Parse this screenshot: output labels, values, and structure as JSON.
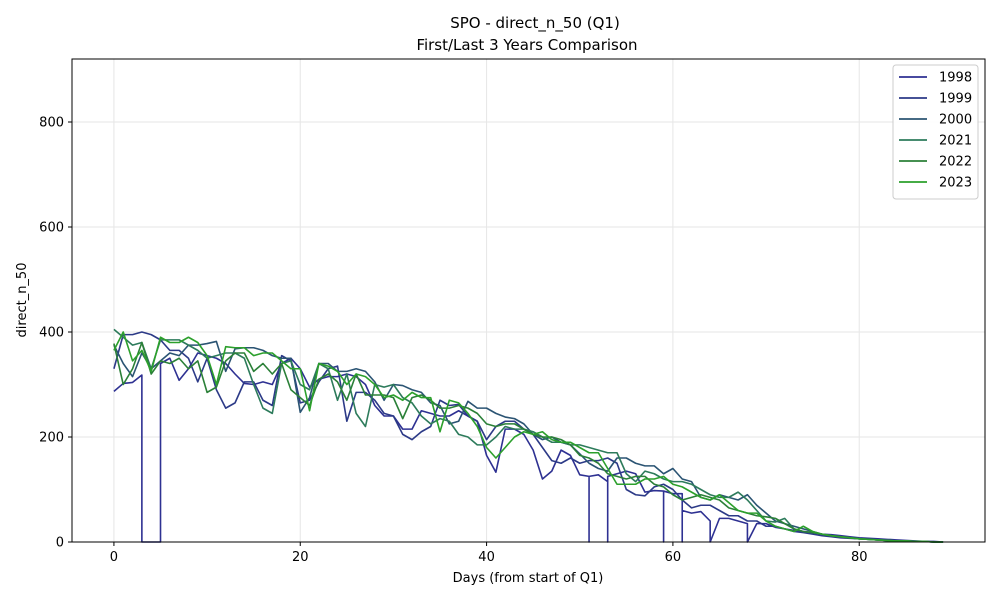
{
  "chart_data": {
    "type": "line",
    "title": "SPO - direct_n_50 (Q1)",
    "subtitle": "First/Last 3 Years Comparison",
    "xlabel": "Days (from start of Q1)",
    "ylabel": "direct_n_50",
    "xlim": [
      -4.5,
      93.5
    ],
    "ylim": [
      0,
      920
    ],
    "xticks": [
      0,
      20,
      40,
      60,
      80
    ],
    "yticks": [
      0,
      200,
      400,
      600,
      800
    ],
    "grid": true,
    "legend_position": "top-right",
    "series": [
      {
        "name": "1998",
        "color": "#2e3192",
        "x": [
          0,
          1,
          2,
          3,
          3,
          3,
          4,
          5,
          5,
          5,
          6,
          7,
          8,
          9,
          10,
          11,
          12,
          13,
          14,
          15,
          16,
          17,
          18,
          19,
          20,
          21,
          22,
          23,
          24,
          25,
          26,
          27,
          28,
          29,
          30,
          31,
          32,
          33,
          34,
          35,
          36,
          37,
          38,
          39,
          40,
          41,
          42,
          43,
          44,
          45,
          46,
          47,
          48,
          49,
          50,
          51,
          51,
          51,
          52,
          53,
          53,
          53,
          54,
          55,
          56,
          57,
          58,
          59,
          59,
          59,
          60,
          61,
          61,
          61,
          62,
          63,
          64,
          64,
          64,
          65,
          66,
          67,
          68,
          68,
          68,
          69,
          70,
          71,
          72,
          73,
          74,
          75,
          76,
          77,
          78,
          79,
          80,
          81,
          82,
          83,
          84,
          85,
          86,
          87,
          88,
          89
        ],
        "y": [
          287,
          302,
          304,
          318,
          0,
          0,
          0,
          0,
          297,
          340,
          350,
          308,
          330,
          360,
          355,
          350,
          340,
          320,
          302,
          300,
          305,
          300,
          340,
          350,
          330,
          295,
          310,
          315,
          315,
          320,
          315,
          300,
          260,
          240,
          240,
          215,
          215,
          250,
          245,
          240,
          240,
          250,
          240,
          230,
          165,
          133,
          215,
          215,
          205,
          175,
          120,
          135,
          175,
          165,
          128,
          125,
          0,
          125,
          128,
          115,
          0,
          125,
          130,
          135,
          130,
          95,
          98,
          97,
          0,
          97,
          92,
          92,
          0,
          60,
          55,
          58,
          40,
          0,
          0,
          45,
          45,
          40,
          35,
          0,
          0,
          35,
          35,
          28,
          25,
          22,
          20,
          18,
          15,
          14,
          12,
          10,
          8,
          7,
          6,
          5,
          4,
          3,
          2,
          1,
          1,
          0
        ]
      },
      {
        "name": "1999",
        "color": "#2c3a87",
        "x": [
          0,
          1,
          2,
          3,
          4,
          5,
          6,
          7,
          8,
          9,
          10,
          11,
          12,
          13,
          14,
          15,
          16,
          17,
          18,
          19,
          20,
          21,
          22,
          23,
          24,
          25,
          26,
          27,
          28,
          29,
          30,
          31,
          32,
          33,
          34,
          35,
          36,
          37,
          38,
          39,
          40,
          41,
          42,
          43,
          44,
          45,
          46,
          47,
          48,
          49,
          50,
          51,
          52,
          53,
          54,
          55,
          56,
          57,
          58,
          59,
          60,
          61,
          62,
          63,
          64,
          65,
          66,
          67,
          68,
          69,
          70,
          71,
          72,
          73,
          74,
          75,
          76,
          77,
          78,
          79,
          80,
          81,
          82,
          83,
          84,
          85,
          86,
          87,
          88,
          89
        ],
        "y": [
          330,
          395,
          395,
          400,
          395,
          385,
          365,
          365,
          350,
          305,
          350,
          290,
          255,
          265,
          305,
          305,
          270,
          260,
          355,
          345,
          265,
          270,
          305,
          330,
          335,
          230,
          285,
          285,
          270,
          245,
          240,
          205,
          195,
          210,
          220,
          270,
          260,
          262,
          240,
          230,
          195,
          220,
          230,
          230,
          215,
          205,
          180,
          155,
          150,
          160,
          150,
          155,
          155,
          160,
          150,
          100,
          90,
          88,
          105,
          110,
          100,
          80,
          65,
          70,
          70,
          60,
          50,
          50,
          40,
          40,
          30,
          30,
          25,
          20,
          18,
          15,
          12,
          10,
          8,
          7,
          6,
          5,
          4,
          3,
          2,
          2,
          1,
          1,
          0,
          0
        ]
      },
      {
        "name": "2000",
        "color": "#2b5473",
        "x": [
          0,
          1,
          2,
          3,
          4,
          5,
          6,
          7,
          8,
          9,
          10,
          11,
          12,
          13,
          14,
          15,
          16,
          17,
          18,
          19,
          20,
          21,
          22,
          23,
          24,
          25,
          26,
          27,
          28,
          29,
          30,
          31,
          32,
          33,
          34,
          35,
          36,
          37,
          38,
          39,
          40,
          41,
          42,
          43,
          44,
          45,
          46,
          47,
          48,
          49,
          50,
          51,
          52,
          53,
          54,
          55,
          56,
          57,
          58,
          59,
          60,
          61,
          62,
          63,
          64,
          65,
          66,
          67,
          68,
          69,
          70,
          71,
          72,
          73,
          74,
          75,
          76,
          77,
          78,
          79,
          80,
          81,
          82,
          83,
          84,
          85,
          86,
          87,
          88,
          89
        ],
        "y": [
          375,
          340,
          315,
          360,
          330,
          345,
          360,
          355,
          375,
          375,
          378,
          382,
          325,
          368,
          370,
          370,
          365,
          355,
          350,
          350,
          247,
          275,
          340,
          340,
          325,
          325,
          330,
          325,
          305,
          270,
          300,
          298,
          290,
          285,
          265,
          260,
          225,
          230,
          268,
          255,
          255,
          245,
          238,
          235,
          225,
          205,
          195,
          200,
          190,
          185,
          168,
          150,
          140,
          135,
          160,
          160,
          150,
          145,
          145,
          130,
          140,
          120,
          115,
          85,
          80,
          90,
          85,
          80,
          90,
          70,
          55,
          40,
          35,
          30,
          25,
          20,
          15,
          12,
          10,
          8,
          6,
          5,
          4,
          3,
          2,
          2,
          1,
          1,
          0,
          0
        ]
      },
      {
        "name": "2021",
        "color": "#2d7b5b",
        "x": [
          0,
          1,
          2,
          3,
          4,
          5,
          6,
          7,
          8,
          9,
          10,
          11,
          12,
          13,
          14,
          15,
          16,
          17,
          18,
          19,
          20,
          21,
          22,
          23,
          24,
          25,
          26,
          27,
          28,
          29,
          30,
          31,
          32,
          33,
          34,
          35,
          36,
          37,
          38,
          39,
          40,
          41,
          42,
          43,
          44,
          45,
          46,
          47,
          48,
          49,
          50,
          51,
          52,
          53,
          54,
          55,
          56,
          57,
          58,
          59,
          60,
          61,
          62,
          63,
          64,
          65,
          66,
          67,
          68,
          69,
          70,
          71,
          72,
          73,
          74,
          75,
          76,
          77,
          78,
          79,
          80,
          81,
          82,
          83,
          84,
          85,
          86,
          87,
          88,
          89
        ],
        "y": [
          405,
          390,
          375,
          380,
          330,
          385,
          385,
          385,
          375,
          365,
          350,
          355,
          360,
          360,
          350,
          300,
          255,
          245,
          340,
          345,
          300,
          290,
          340,
          330,
          270,
          320,
          245,
          220,
          300,
          295,
          300,
          275,
          265,
          240,
          225,
          235,
          230,
          205,
          200,
          185,
          185,
          200,
          220,
          215,
          215,
          210,
          200,
          190,
          190,
          185,
          185,
          180,
          175,
          170,
          170,
          130,
          115,
          135,
          130,
          120,
          115,
          115,
          110,
          100,
          90,
          85,
          85,
          95,
          80,
          60,
          40,
          38,
          45,
          25,
          20,
          18,
          15,
          12,
          10,
          8,
          6,
          5,
          4,
          3,
          2,
          2,
          1,
          1,
          0,
          0
        ]
      },
      {
        "name": "2022",
        "color": "#2b8038",
        "x": [
          0,
          1,
          2,
          3,
          4,
          5,
          6,
          7,
          8,
          9,
          10,
          11,
          12,
          13,
          14,
          15,
          16,
          17,
          18,
          19,
          20,
          21,
          22,
          23,
          24,
          25,
          26,
          27,
          28,
          29,
          30,
          31,
          32,
          33,
          34,
          35,
          36,
          37,
          38,
          39,
          40,
          41,
          42,
          43,
          44,
          45,
          46,
          47,
          48,
          49,
          50,
          51,
          52,
          53,
          54,
          55,
          56,
          57,
          58,
          59,
          60,
          61,
          62,
          63,
          64,
          65,
          66,
          67,
          68,
          69,
          70,
          71,
          72,
          73,
          74,
          75,
          76,
          77,
          78,
          79,
          80,
          81,
          82,
          83,
          84,
          85,
          86,
          87,
          88,
          89
        ],
        "y": [
          378,
          300,
          330,
          380,
          320,
          345,
          340,
          350,
          330,
          345,
          285,
          295,
          345,
          360,
          360,
          325,
          340,
          320,
          340,
          290,
          275,
          260,
          310,
          320,
          305,
          270,
          320,
          280,
          280,
          280,
          275,
          235,
          275,
          280,
          270,
          255,
          255,
          260,
          255,
          245,
          225,
          220,
          225,
          225,
          215,
          205,
          200,
          200,
          195,
          185,
          165,
          160,
          150,
          130,
          125,
          120,
          125,
          125,
          110,
          105,
          90,
          80,
          85,
          90,
          85,
          80,
          65,
          60,
          55,
          50,
          48,
          45,
          35,
          25,
          20,
          18,
          15,
          12,
          10,
          8,
          6,
          5,
          4,
          3,
          2,
          2,
          1,
          1,
          0,
          0
        ]
      },
      {
        "name": "2023",
        "color": "#2ca02c",
        "x": [
          0,
          1,
          2,
          3,
          4,
          5,
          6,
          7,
          8,
          9,
          10,
          11,
          12,
          13,
          14,
          15,
          16,
          17,
          18,
          19,
          20,
          21,
          22,
          23,
          24,
          25,
          26,
          27,
          28,
          29,
          30,
          31,
          32,
          33,
          34,
          35,
          36,
          37,
          38,
          39,
          40,
          41,
          42,
          43,
          44,
          45,
          46,
          47,
          48,
          49,
          50,
          51,
          52,
          53,
          54,
          55,
          56,
          57,
          58,
          59,
          60,
          61,
          62,
          63,
          64,
          65,
          66,
          67,
          68,
          69,
          70,
          71,
          72,
          73,
          74,
          75,
          76,
          77,
          78,
          79,
          80,
          81,
          82,
          83,
          84,
          85,
          86,
          87,
          88,
          89
        ],
        "y": [
          365,
          400,
          345,
          365,
          325,
          390,
          380,
          380,
          390,
          380,
          355,
          300,
          372,
          370,
          370,
          355,
          360,
          360,
          345,
          330,
          330,
          250,
          340,
          335,
          325,
          300,
          320,
          315,
          300,
          275,
          280,
          270,
          285,
          275,
          275,
          210,
          270,
          265,
          245,
          220,
          180,
          160,
          180,
          200,
          210,
          205,
          210,
          195,
          190,
          190,
          180,
          170,
          170,
          140,
          110,
          110,
          110,
          120,
          120,
          125,
          110,
          105,
          95,
          85,
          80,
          90,
          75,
          60,
          55,
          55,
          40,
          30,
          25,
          20,
          30,
          20,
          15,
          12,
          10,
          8,
          6,
          5,
          4,
          3,
          2,
          2,
          1,
          1,
          0,
          0
        ]
      }
    ]
  }
}
